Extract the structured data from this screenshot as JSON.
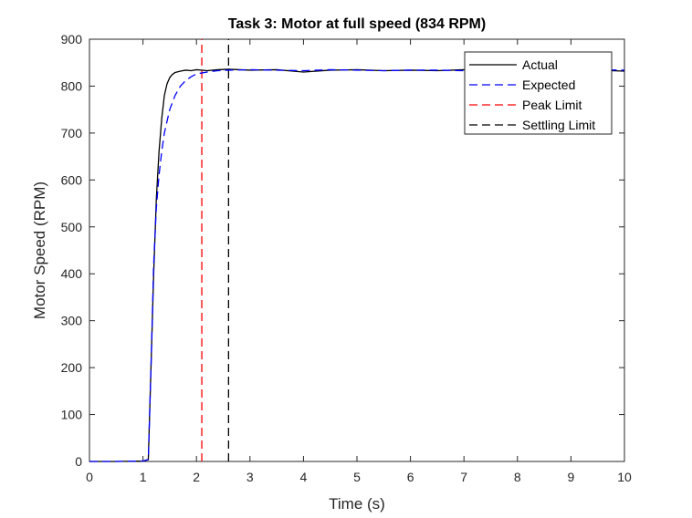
{
  "chart_data": {
    "type": "line",
    "title": "Task 3: Motor at full speed (834 RPM)",
    "xlabel": "Time (s)",
    "ylabel": "Motor Speed (RPM)",
    "xlim": [
      0,
      10
    ],
    "ylim": [
      0,
      900
    ],
    "xticks": [
      0,
      1,
      2,
      3,
      4,
      5,
      6,
      7,
      8,
      9,
      10
    ],
    "yticks": [
      0,
      100,
      200,
      300,
      400,
      500,
      600,
      700,
      800,
      900
    ],
    "grid": false,
    "legend_position": "top-right",
    "series": [
      {
        "name": "Actual",
        "color": "#000000",
        "style": "solid",
        "x": [
          0,
          0.5,
          1.0,
          1.1,
          1.15,
          1.2,
          1.25,
          1.3,
          1.35,
          1.4,
          1.45,
          1.5,
          1.55,
          1.6,
          1.7,
          1.8,
          1.9,
          2.0,
          2.2,
          2.4,
          2.6,
          3.0,
          3.5,
          4.0,
          4.5,
          5.0,
          5.5,
          6.0,
          6.5,
          7.0,
          7.5,
          8.0,
          8.5,
          9.0,
          9.5,
          10.0
        ],
        "y": [
          0,
          0,
          1,
          4,
          200,
          400,
          560,
          660,
          730,
          780,
          805,
          818,
          825,
          829,
          832,
          834,
          833,
          835,
          833,
          835,
          836,
          834,
          835,
          830,
          834,
          835,
          833,
          834,
          833,
          835,
          834,
          836,
          833,
          835,
          834,
          832
        ]
      },
      {
        "name": "Expected",
        "color": "#0000ff",
        "style": "dashed",
        "x": [
          0,
          0.5,
          1.0,
          1.1,
          1.15,
          1.2,
          1.25,
          1.3,
          1.35,
          1.4,
          1.5,
          1.6,
          1.7,
          1.8,
          1.9,
          2.0,
          2.2,
          2.4,
          2.6,
          3.0,
          3.5,
          4.0,
          4.5,
          5.0,
          5.5,
          6.0,
          6.5,
          7.0,
          7.5,
          8.0,
          8.5,
          9.0,
          9.5,
          10.0
        ],
        "y": [
          0,
          0,
          1,
          4,
          200,
          420,
          540,
          610,
          660,
          700,
          750,
          780,
          800,
          812,
          820,
          826,
          830,
          833,
          834,
          835,
          834,
          833,
          835,
          834,
          833,
          834,
          834,
          833,
          835,
          834,
          833,
          834,
          835,
          834
        ]
      },
      {
        "name": "Peak Limit",
        "color": "#ff0000",
        "style": "dashed",
        "x": [
          2.1,
          2.1
        ],
        "y": [
          0,
          900
        ]
      },
      {
        "name": "Settling Limit",
        "color": "#000000",
        "style": "dashed",
        "x": [
          2.6,
          2.6
        ],
        "y": [
          0,
          900
        ]
      }
    ]
  }
}
